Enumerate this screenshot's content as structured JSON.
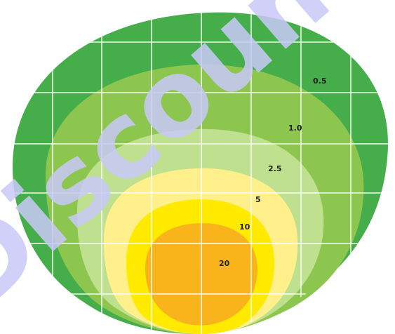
{
  "diagram": {
    "zones": [
      {
        "label": "0.5",
        "color": "#45ad49"
      },
      {
        "label": "1.0",
        "color": "#8dc64f"
      },
      {
        "label": "2.5",
        "color": "#bfe08f"
      },
      {
        "label": "5",
        "color": "#fff08c"
      },
      {
        "label": "10",
        "color": "#ffea00"
      },
      {
        "label": "20",
        "color": "#f9b41b"
      }
    ],
    "grid_color": "#ffffff",
    "watermark": "Discount"
  }
}
